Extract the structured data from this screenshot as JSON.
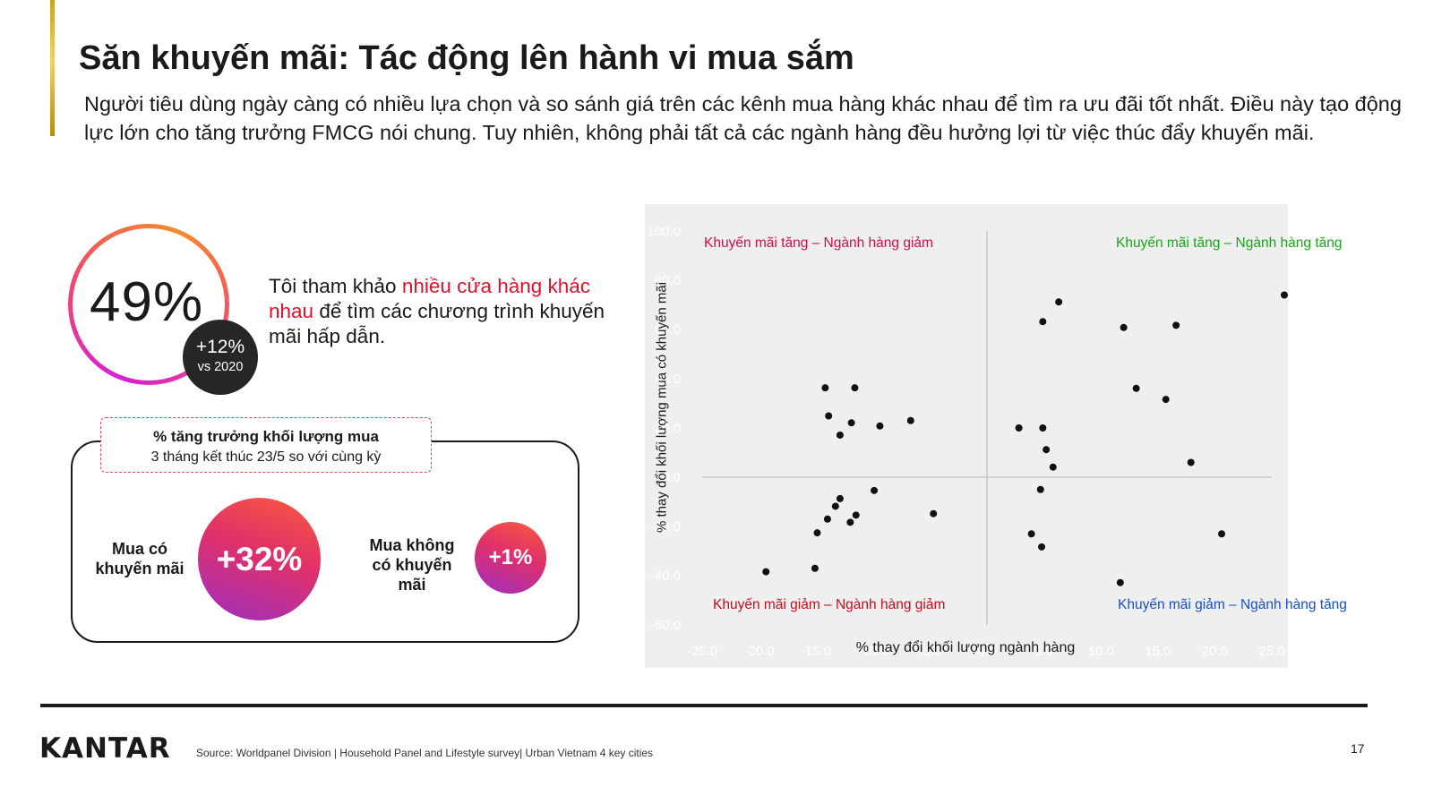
{
  "header": {
    "title": "Săn khuyến mãi: Tác động lên hành vi mua sắm",
    "subtitle": "Người tiêu dùng ngày càng có nhiều lựa chọn và so sánh giá trên các kênh mua hàng khác nhau để tìm ra ưu đãi tốt nhất. Điều này tạo động lực lớn cho tăng trưởng FMCG nói chung. Tuy nhiên, không phải tất cả các ngành hàng đều hưởng lợi từ việc thúc đẩy khuyến mãi."
  },
  "stat": {
    "value": "49%",
    "badge_change": "+12%",
    "badge_ref": "vs 2020",
    "quote_before": "Tôi tham khảo ",
    "quote_highlight": "nhiều cửa hàng khác nhau",
    "quote_after": " để tìm các chương trình khuyến mãi hấp dẫn.",
    "highlight_color": "#e0102a"
  },
  "growth_panel": {
    "title": "% tăng trưởng khối lượng mua",
    "period": "3 tháng kết thúc 23/5 so với cùng kỳ",
    "promo_label": "Mua có khuyến mãi",
    "promo_value": "+32%",
    "nopromo_label": "Mua không có khuyến mãi",
    "nopromo_value": "+1%"
  },
  "chart_data": {
    "type": "scatter",
    "xlabel": "% thay đổi khối lượng ngành hàng",
    "ylabel": "% thay đổi khối lượng mua có khuyến mãi",
    "x_ticks": [
      "-25.0",
      "-20.0",
      "-15.0",
      "-10.0",
      "-5.0",
      "0.0",
      "5.0",
      "10.0",
      "15.0",
      "20.0",
      "25.0"
    ],
    "y_ticks": [
      "-60.0",
      "-40.0",
      "-20.0",
      "0.0",
      "20.0",
      "40.0",
      "60.0",
      "80.0",
      "100.0"
    ],
    "xlim": [
      -25,
      25
    ],
    "ylim": [
      -60,
      100
    ],
    "grid": false,
    "quadrants": {
      "top_left": "Khuyến mãi tăng – Ngành hàng giảm",
      "top_right": "Khuyến mãi tăng – Ngành hàng tăng",
      "bottom_left": "Khuyến mãi giảm – Ngành hàng giảm",
      "bottom_right": "Khuyến mãi giảm – Ngành hàng tăng"
    },
    "quadrant_colors": {
      "top_left": "#d10f4a",
      "top_right": "#19a619",
      "bottom_left": "#c01020",
      "bottom_right": "#1a4fc7"
    },
    "points": [
      [
        -19.4,
        -38.4
      ],
      [
        -15.1,
        -37.0
      ],
      [
        -14.9,
        -22.6
      ],
      [
        -14.0,
        -17.0
      ],
      [
        -13.3,
        -11.8
      ],
      [
        -12.9,
        -8.7
      ],
      [
        -12.0,
        -18.3
      ],
      [
        -11.5,
        -15.4
      ],
      [
        -9.9,
        -5.4
      ],
      [
        -14.2,
        36.3
      ],
      [
        -11.6,
        36.3
      ],
      [
        -13.9,
        24.9
      ],
      [
        -12.9,
        17.1
      ],
      [
        -11.9,
        22.1
      ],
      [
        -6.7,
        23.0
      ],
      [
        -4.7,
        -14.8
      ],
      [
        -9.4,
        20.8
      ],
      [
        2.8,
        20.0
      ],
      [
        4.9,
        20.0
      ],
      [
        5.2,
        11.2
      ],
      [
        5.8,
        4.1
      ],
      [
        4.7,
        -5.0
      ],
      [
        3.9,
        -23.0
      ],
      [
        4.8,
        -28.3
      ],
      [
        11.7,
        -42.8
      ],
      [
        6.3,
        71.2
      ],
      [
        4.9,
        63.2
      ],
      [
        12.0,
        60.8
      ],
      [
        13.1,
        36.1
      ],
      [
        15.7,
        31.6
      ],
      [
        16.6,
        61.7
      ],
      [
        17.9,
        6.0
      ],
      [
        20.6,
        -23.0
      ],
      [
        26.1,
        74.0
      ]
    ]
  },
  "footer": {
    "logo": "KANTAR",
    "source": "Source: Worldpanel Division | Household Panel and Lifestyle survey| Urban Vietnam 4 key cities",
    "page": "17"
  }
}
